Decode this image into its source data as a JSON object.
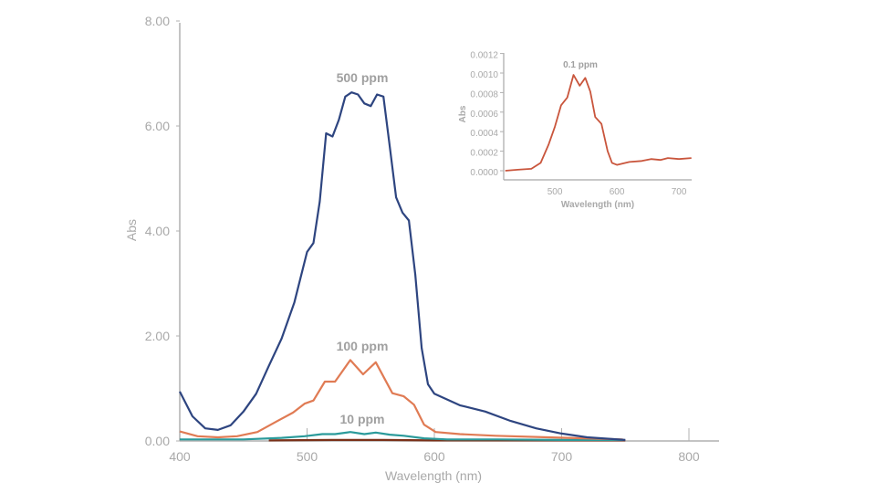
{
  "chart_data": [
    {
      "type": "line",
      "xlabel": "Wavelength (nm)",
      "ylabel": "Abs",
      "xlim": [
        400,
        825
      ],
      "ylim": [
        0,
        8
      ],
      "xticks": [
        400,
        500,
        600,
        700,
        800
      ],
      "xtick_labels": [
        "400",
        "500",
        "600",
        "700",
        "800"
      ],
      "yticks": [
        0,
        2,
        4,
        6,
        8
      ],
      "ytick_labels": [
        "0.00",
        "2.00",
        "4.00",
        "6.00",
        "8.00"
      ],
      "grid": false,
      "series": [
        {
          "name": "500 ppm",
          "color": "#2e4580",
          "x": [
            400,
            410,
            420,
            430,
            440,
            450,
            460,
            470,
            480,
            490,
            500,
            505,
            510,
            515,
            520,
            525,
            530,
            535,
            540,
            545,
            550,
            555,
            560,
            565,
            570,
            575,
            580,
            585,
            590,
            595,
            600,
            620,
            640,
            660,
            680,
            700,
            720,
            750
          ],
          "y": [
            0.94,
            0.47,
            0.24,
            0.21,
            0.3,
            0.56,
            0.9,
            1.43,
            1.95,
            2.64,
            3.6,
            3.77,
            4.56,
            5.86,
            5.8,
            6.12,
            6.56,
            6.64,
            6.6,
            6.43,
            6.38,
            6.6,
            6.56,
            5.6,
            4.64,
            4.35,
            4.2,
            3.17,
            1.77,
            1.08,
            0.9,
            0.68,
            0.56,
            0.38,
            0.24,
            0.14,
            0.07,
            0.02
          ]
        },
        {
          "name": "100 ppm",
          "color": "#e07b54",
          "x": [
            400,
            414,
            430,
            445,
            461,
            476,
            489,
            498,
            505,
            514,
            522,
            534,
            544,
            554,
            567,
            576,
            584,
            592,
            601,
            620,
            648,
            689,
            748
          ],
          "y": [
            0.18,
            0.09,
            0.07,
            0.09,
            0.17,
            0.37,
            0.54,
            0.71,
            0.77,
            1.13,
            1.13,
            1.54,
            1.27,
            1.5,
            0.91,
            0.85,
            0.69,
            0.31,
            0.17,
            0.13,
            0.1,
            0.07,
            0.03
          ]
        },
        {
          "name": "10 ppm",
          "color": "#2a9a9a",
          "x": [
            400,
            450,
            480,
            498,
            512,
            522,
            534,
            545,
            554,
            565,
            576,
            592,
            610,
            650,
            700,
            748
          ],
          "y": [
            0.03,
            0.03,
            0.06,
            0.09,
            0.13,
            0.13,
            0.17,
            0.13,
            0.16,
            0.12,
            0.1,
            0.05,
            0.03,
            0.03,
            0.02,
            0.02
          ]
        },
        {
          "color": "#7a3018",
          "x": [
            470,
            520,
            560,
            600,
            650,
            700,
            750
          ],
          "y": [
            0.01,
            0.02,
            0.02,
            0.01,
            0.01,
            0.01,
            0.01
          ]
        }
      ],
      "annotations": [
        "500 ppm",
        "100 ppm",
        "10 ppm"
      ]
    },
    {
      "type": "line",
      "xlabel": "Wavelength (nm)",
      "ylabel": "Abs",
      "xlim": [
        417,
        727
      ],
      "ylim": [
        0,
        0.0012
      ],
      "xticks": [
        500,
        600,
        700
      ],
      "xtick_labels": [
        "500",
        "600",
        "700"
      ],
      "yticks": [
        0,
        0.0002,
        0.0004,
        0.0006,
        0.0008,
        0.001,
        0.0012
      ],
      "ytick_labels": [
        "0.0000",
        "0.0002",
        "0.0004",
        "0.0006",
        "0.0008",
        "0.0010",
        "0.0012"
      ],
      "grid": false,
      "series": [
        {
          "name": "0.1 ppm",
          "color": "#c9553c",
          "x": [
            420,
            440,
            462,
            477,
            490,
            500,
            510,
            520,
            530,
            540,
            549,
            557,
            565,
            575,
            585,
            592,
            600,
            620,
            640,
            655,
            670,
            682,
            700,
            720
          ],
          "y": [
            0,
            1e-05,
            2e-05,
            8e-05,
            0.00027,
            0.00045,
            0.00067,
            0.00075,
            0.00098,
            0.00087,
            0.00095,
            0.00081,
            0.00055,
            0.00048,
            0.0002,
            8e-05,
            6e-05,
            9e-05,
            0.0001,
            0.00012,
            0.00011,
            0.00013,
            0.00012,
            0.00013
          ]
        }
      ],
      "annotations": [
        "0.1 ppm"
      ]
    }
  ]
}
